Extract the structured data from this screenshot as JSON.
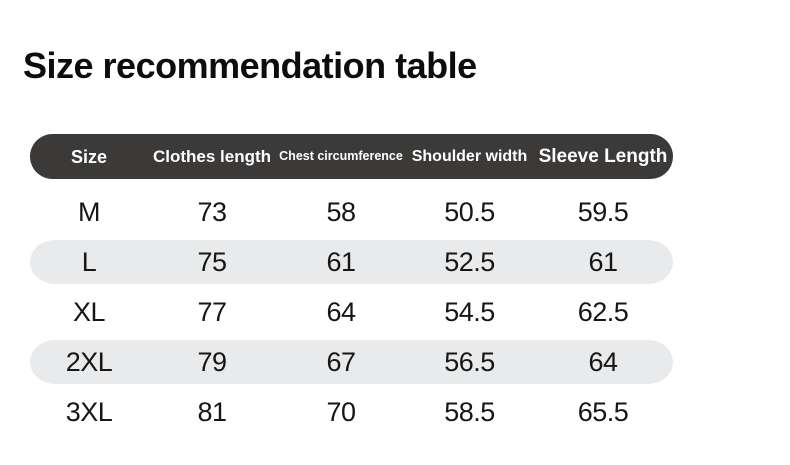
{
  "title": "Size recommendation table",
  "colors": {
    "header_bg": "#3b3a39",
    "alt_row_bg": "#e9eaeb",
    "header_text": "#ffffff",
    "body_text": "#161616",
    "background": "#ffffff"
  },
  "table": {
    "header": [
      "Size",
      "Clothes length",
      "Chest circumference",
      "Shoulder width",
      "Sleeve Length"
    ],
    "rows": [
      {
        "cells": [
          "M",
          "73",
          "58",
          "50.5",
          "59.5"
        ]
      },
      {
        "cells": [
          "L",
          "75",
          "61",
          "52.5",
          "61"
        ]
      },
      {
        "cells": [
          "XL",
          "77",
          "64",
          "54.5",
          "62.5"
        ]
      },
      {
        "cells": [
          "2XL",
          "79",
          "67",
          "56.5",
          "64"
        ]
      },
      {
        "cells": [
          "3XL",
          "81",
          "70",
          "58.5",
          "65.5"
        ]
      }
    ]
  },
  "chart_data": {
    "type": "table",
    "title": "Size recommendation table",
    "columns": [
      "Size",
      "Clothes length",
      "Chest circumference",
      "Shoulder width",
      "Sleeve Length"
    ],
    "rows": [
      [
        "M",
        73,
        58,
        50.5,
        59.5
      ],
      [
        "L",
        75,
        61,
        52.5,
        61
      ],
      [
        "XL",
        77,
        64,
        54.5,
        62.5
      ],
      [
        "2XL",
        79,
        67,
        56.5,
        64
      ],
      [
        "3XL",
        81,
        70,
        58.5,
        65.5
      ]
    ]
  }
}
